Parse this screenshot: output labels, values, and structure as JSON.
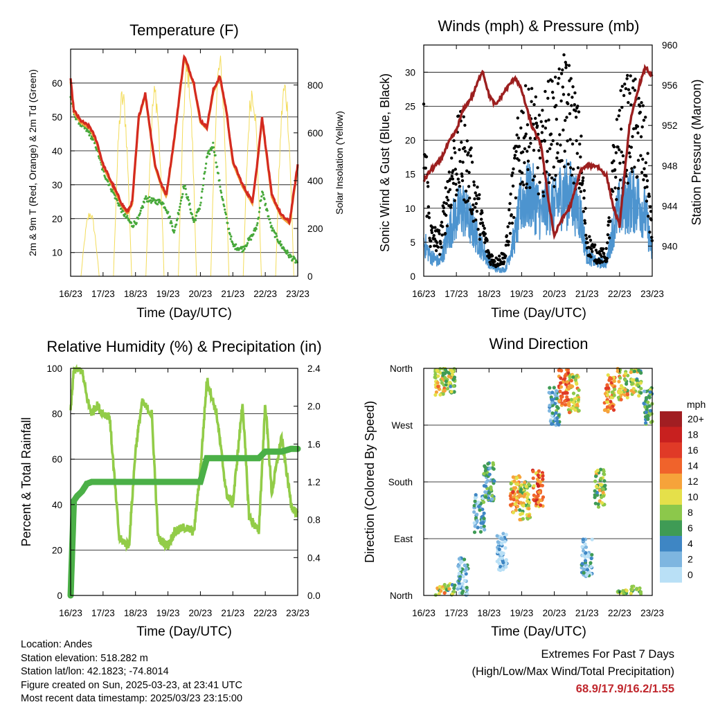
{
  "x_ticks": [
    "16/23",
    "17/23",
    "18/23",
    "19/23",
    "20/23",
    "21/23",
    "22/23",
    "23/23"
  ],
  "xlabel": "Time (Day/UTC)",
  "panels": {
    "temperature": {
      "title": "Temperature (F)",
      "ylabel_left": "2m & 9m T (Red, Orange) & 2m Td (Green)",
      "ylabel_right": "Solar Insolation (Yellow)",
      "left_ticks": [
        "10",
        "20",
        "30",
        "40",
        "50",
        "60"
      ],
      "right_ticks": [
        "0",
        "200",
        "400",
        "600",
        "800"
      ]
    },
    "winds": {
      "title": "Winds (mph) & Pressure (mb)",
      "ylabel_left": "Sonic Wind & Gust (Blue, Black)",
      "ylabel_right": "Station Pressure (Maroon)",
      "left_ticks": [
        "0",
        "5",
        "10",
        "15",
        "20",
        "25",
        "30"
      ],
      "right_ticks": [
        "940",
        "944",
        "948",
        "952",
        "956",
        "960"
      ]
    },
    "humidity": {
      "title": "Relative Humidity (%) & Precipitation (in)",
      "ylabel_left": "Percent & Total Rainfall",
      "left_ticks": [
        "0",
        "20",
        "40",
        "60",
        "80",
        "100"
      ],
      "right_ticks": [
        "0.0",
        "0.4",
        "0.8",
        "1.2",
        "1.6",
        "2.0",
        "2.4"
      ]
    },
    "direction": {
      "title": "Wind Direction",
      "ylabel_left": "Direction (Colored By Speed)",
      "left_ticks": [
        "North",
        "East",
        "South",
        "West",
        "North"
      ],
      "legend_title": "mph",
      "legend_labels": [
        "20+",
        "18",
        "16",
        "14",
        "12",
        "10",
        "8",
        "6",
        "4",
        "2",
        "0"
      ],
      "legend_colors": [
        "#a11e22",
        "#c8201f",
        "#e03a27",
        "#f0632b",
        "#f6a33a",
        "#e5e04a",
        "#8cc84b",
        "#3f9b55",
        "#3e86c4",
        "#7eb6e0",
        "#b9e0f6"
      ]
    }
  },
  "info": {
    "location": "Location: Andes",
    "elevation": "Station elevation: 518.282 m",
    "latlon": "Station lat/lon: 42.1823; -74.8014",
    "created": "Figure created on Sun, 2025-03-23, at 23:41 UTC",
    "recent": "Most recent data timestamp: 2025/03/23 23:15:00"
  },
  "extremes": {
    "heading": "Extremes For Past 7 Days",
    "subheading": "(High/Low/Max Wind/Total Precipitation)",
    "values": "68.9/17.9/16.2/1.55"
  },
  "colors": {
    "temp_2m": "#d42a20",
    "temp_9m": "#f2a03a",
    "dewpoint": "#47a83a",
    "solar": "#f3dc5a",
    "wind": "#4d94cf",
    "gust": "#000000",
    "pressure": "#9c1f1f",
    "rh": "#92cc48",
    "precip": "#4bb047"
  },
  "chart_data": [
    {
      "type": "line",
      "title": "Temperature (F)",
      "xlabel": "Time (Day/UTC)",
      "ylabel": "2m & 9m T (Red, Orange) & 2m Td (Green)",
      "y2label": "Solar Insolation (Yellow)",
      "ylim": [
        3,
        70
      ],
      "y2lim": [
        0,
        950
      ],
      "x": [
        16,
        16.1,
        16.3,
        16.6,
        16.8,
        17,
        17.3,
        17.6,
        17.75,
        17.9,
        18.1,
        18.3,
        18.6,
        18.8,
        18.95,
        19.2,
        19.5,
        19.8,
        20.0,
        20.2,
        20.4,
        20.6,
        20.8,
        21.0,
        21.3,
        21.6,
        21.75,
        21.9,
        22.2,
        22.5,
        22.75,
        23.0
      ],
      "series": [
        {
          "name": "2m T",
          "values": [
            61,
            52,
            49,
            47,
            43,
            36,
            30,
            24,
            22,
            25,
            50,
            57,
            36,
            30,
            27,
            44,
            68,
            60,
            49,
            47,
            58,
            62,
            52,
            37,
            30,
            25,
            36,
            50,
            27,
            21,
            19,
            36
          ]
        },
        {
          "name": "2m Td",
          "values": [
            56,
            51,
            48,
            45,
            41,
            34,
            28,
            22,
            20,
            18,
            20,
            26,
            25,
            25,
            23,
            16,
            30,
            19,
            24,
            38,
            42,
            30,
            20,
            12,
            11,
            15,
            18,
            28,
            17,
            12,
            9,
            7
          ]
        }
      ],
      "solar_peaks": [
        {
          "x": 16.6,
          "y": 280
        },
        {
          "x": 17.6,
          "y": 800
        },
        {
          "x": 18.6,
          "y": 820
        },
        {
          "x": 19.6,
          "y": 920
        },
        {
          "x": 20.6,
          "y": 940
        },
        {
          "x": 21.6,
          "y": 830
        },
        {
          "x": 22.6,
          "y": 840
        }
      ]
    },
    {
      "type": "line",
      "title": "Winds (mph) & Pressure (mb)",
      "xlabel": "Time (Day/UTC)",
      "ylabel": "Sonic Wind & Gust (Blue, Black)",
      "y2label": "Station Pressure (Maroon)",
      "ylim": [
        0,
        34
      ],
      "y2lim": [
        937,
        960
      ],
      "x": [
        16,
        16.2,
        16.5,
        16.8,
        17.0,
        17.2,
        17.5,
        17.8,
        18.0,
        18.2,
        18.5,
        18.8,
        19.0,
        19.3,
        19.6,
        19.8,
        20.0,
        20.2,
        20.5,
        20.8,
        21.0,
        21.3,
        21.6,
        21.8,
        22.0,
        22.3,
        22.6,
        22.8,
        23.0
      ],
      "series": [
        {
          "name": "Sonic Wind",
          "values": [
            5,
            3,
            2,
            7,
            9,
            10,
            7,
            4,
            2,
            1,
            1,
            6,
            11,
            12,
            9,
            11,
            10,
            12,
            12,
            9,
            3,
            2,
            2,
            7,
            10,
            11,
            11,
            9,
            3
          ]
        },
        {
          "name": "Gust",
          "values": [
            20,
            6,
            5,
            14,
            17,
            18,
            13,
            7,
            3,
            2,
            3,
            15,
            20,
            21,
            17,
            22,
            21,
            24,
            23,
            17,
            5,
            3,
            3,
            14,
            20,
            22,
            21,
            17,
            5
          ]
        },
        {
          "name": "Station Pressure",
          "values": [
            946.5,
            947.5,
            948.5,
            950.5,
            951.5,
            953.5,
            955,
            957.5,
            955,
            954,
            955.5,
            956.8,
            955.5,
            952,
            950,
            945,
            941,
            942.5,
            944,
            947.5,
            948,
            948,
            947,
            944,
            942,
            952,
            956,
            957.8,
            956.8
          ]
        }
      ]
    },
    {
      "type": "line",
      "title": "Relative Humidity (%) & Precipitation (in)",
      "xlabel": "Time (Day/UTC)",
      "ylabel": "Percent & Total Rainfall",
      "ylim": [
        0,
        100
      ],
      "y2lim": [
        0,
        2.4
      ],
      "x": [
        16,
        16.1,
        16.2,
        16.35,
        16.5,
        16.65,
        16.8,
        17.0,
        17.2,
        17.5,
        17.8,
        18.0,
        18.2,
        18.5,
        18.7,
        19.0,
        19.2,
        19.5,
        19.8,
        20.0,
        20.2,
        20.5,
        20.8,
        21.0,
        21.3,
        21.5,
        21.8,
        22.0,
        22.2,
        22.5,
        22.8,
        23.0
      ],
      "series": [
        {
          "name": "Relative Humidity",
          "values": [
            81,
            99,
            100,
            99,
            87,
            80,
            84,
            80,
            79,
            25,
            22,
            64,
            85,
            80,
            25,
            22,
            28,
            30,
            28,
            55,
            95,
            80,
            45,
            40,
            85,
            35,
            28,
            85,
            45,
            70,
            40,
            35
          ]
        },
        {
          "name": "Total Precipitation",
          "values": [
            0.0,
            1.0,
            1.05,
            1.1,
            1.18,
            1.2,
            1.2,
            1.2,
            1.2,
            1.2,
            1.2,
            1.2,
            1.2,
            1.2,
            1.2,
            1.2,
            1.2,
            1.2,
            1.2,
            1.2,
            1.45,
            1.45,
            1.45,
            1.45,
            1.45,
            1.45,
            1.45,
            1.52,
            1.52,
            1.52,
            1.55,
            1.55
          ]
        }
      ]
    },
    {
      "type": "scatter",
      "title": "Wind Direction",
      "xlabel": "Time (Day/UTC)",
      "ylabel": "Direction (Colored By Speed)",
      "ylim": [
        0,
        360
      ],
      "y_tick_labels": [
        "North",
        "East",
        "South",
        "West",
        "North"
      ],
      "clusters": [
        {
          "x": 16.5,
          "dir": 345,
          "speed": 10
        },
        {
          "x": 16.8,
          "dir": 350,
          "speed": 8
        },
        {
          "x": 17.2,
          "dir": 30,
          "speed": 3
        },
        {
          "x": 17.7,
          "dir": 130,
          "speed": 4
        },
        {
          "x": 18.0,
          "dir": 180,
          "speed": 5
        },
        {
          "x": 18.4,
          "dir": 70,
          "speed": 1
        },
        {
          "x": 18.8,
          "dir": 160,
          "speed": 12
        },
        {
          "x": 19.1,
          "dir": 150,
          "speed": 9
        },
        {
          "x": 19.5,
          "dir": 170,
          "speed": 14
        },
        {
          "x": 20.0,
          "dir": 300,
          "speed": 4
        },
        {
          "x": 20.3,
          "dir": 330,
          "speed": 14
        },
        {
          "x": 20.6,
          "dir": 320,
          "speed": 10
        },
        {
          "x": 21.0,
          "dir": 60,
          "speed": 2
        },
        {
          "x": 21.4,
          "dir": 170,
          "speed": 8
        },
        {
          "x": 21.7,
          "dir": 320,
          "speed": 12
        },
        {
          "x": 22.1,
          "dir": 340,
          "speed": 10
        },
        {
          "x": 22.5,
          "dir": 345,
          "speed": 8
        },
        {
          "x": 22.9,
          "dir": 300,
          "speed": 6
        }
      ]
    }
  ]
}
